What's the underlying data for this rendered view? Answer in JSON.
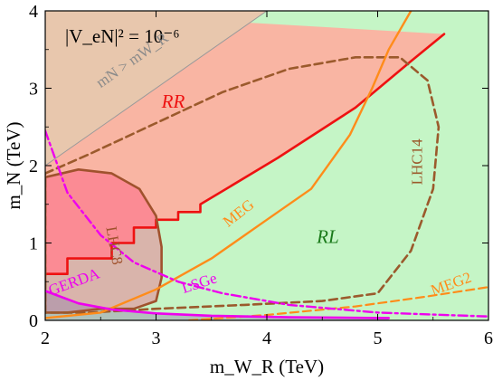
{
  "chart_data": {
    "type": "area",
    "title": "|V_eN|² = 10⁻⁶",
    "xlabel": "m_W_R (TeV)",
    "ylabel": "m_N (TeV)",
    "xlim": [
      2,
      6
    ],
    "ylim": [
      0,
      4
    ],
    "xticks": [
      "2",
      "3",
      "4",
      "5",
      "6"
    ],
    "yticks": [
      "0",
      "1",
      "2",
      "3",
      "4"
    ],
    "grid": false,
    "legend": "none",
    "colors": {
      "rl_region": "#c5f5c6",
      "rr_region": "#f9b5a3",
      "forbidden": "#e8c7ad",
      "rr_boundary": "#ee1111",
      "lhc8": "#a0522d",
      "lhc14": "#9b5a2c",
      "meg": "#ff8c1a",
      "meg2": "#ff8c1a",
      "lsge": "#ee00ee",
      "gerda": "#ee00ee",
      "forbidden_line": "#9a9a9a"
    },
    "regions": [
      {
        "label": "RR",
        "x": 3.05,
        "y": 2.75
      },
      {
        "label": "RL",
        "x": 4.45,
        "y": 1.0
      }
    ],
    "curve_labels": [
      {
        "label": "mN > mW_R",
        "at": [
          2.95,
          3.0
        ]
      },
      {
        "label": "LHC8",
        "at": [
          2.65,
          1.25
        ]
      },
      {
        "label": "LHC14",
        "at": [
          5.4,
          1.75
        ]
      },
      {
        "label": "MEG",
        "at": [
          3.9,
          1.2
        ]
      },
      {
        "label": "MEG2",
        "at": [
          5.75,
          0.32
        ]
      },
      {
        "label": "LSGe",
        "at": [
          3.6,
          0.35
        ]
      },
      {
        "label": "GERDA",
        "at": [
          2.5,
          0.32
        ]
      }
    ],
    "series": [
      {
        "name": "RR",
        "style": "solid",
        "x": [
          2.0,
          2.2,
          2.2,
          2.6,
          2.6,
          2.8,
          2.8,
          3.0,
          3.0,
          3.2,
          3.2,
          3.4,
          3.4,
          4.1,
          4.8,
          5.3,
          5.6
        ],
        "y": [
          0.6,
          0.6,
          0.8,
          0.8,
          1.0,
          1.0,
          1.2,
          1.2,
          1.3,
          1.3,
          1.4,
          1.4,
          1.5,
          2.1,
          2.75,
          3.35,
          3.7
        ]
      },
      {
        "name": "LHC8",
        "style": "solid",
        "x": [
          2.0,
          2.3,
          2.6,
          2.85,
          3.0,
          3.05,
          3.05,
          3.0,
          2.8,
          2.5,
          2.2,
          2.0
        ],
        "y": [
          1.85,
          1.95,
          1.9,
          1.7,
          1.35,
          0.95,
          0.55,
          0.25,
          0.15,
          0.15,
          0.1,
          0.1
        ]
      },
      {
        "name": "LHC14",
        "style": "dashed",
        "x": [
          2.0,
          2.4,
          3.0,
          3.6,
          4.2,
          4.8,
          5.2,
          5.45,
          5.55,
          5.5,
          5.3,
          5.0,
          4.5,
          3.8,
          3.0,
          2.4,
          2.0
        ],
        "y": [
          1.9,
          2.15,
          2.55,
          2.95,
          3.25,
          3.4,
          3.4,
          3.1,
          2.5,
          1.7,
          0.9,
          0.35,
          0.25,
          0.2,
          0.15,
          0.1,
          0.1
        ]
      },
      {
        "name": "MEG",
        "style": "solid",
        "x": [
          2.0,
          2.5,
          3.0,
          3.5,
          4.0,
          4.4,
          4.75,
          4.95,
          5.1,
          5.3
        ],
        "y": [
          0.03,
          0.1,
          0.4,
          0.8,
          1.3,
          1.7,
          2.4,
          3.0,
          3.5,
          4.0
        ]
      },
      {
        "name": "MEG2",
        "style": "dashed",
        "x": [
          3.3,
          4.0,
          4.8,
          5.4,
          6.0
        ],
        "y": [
          0.0,
          0.07,
          0.18,
          0.3,
          0.43
        ]
      },
      {
        "name": "LSGe",
        "style": "dashdot",
        "x": [
          2.0,
          2.2,
          2.5,
          2.8,
          3.2,
          3.6,
          4.2,
          5.0,
          6.0
        ],
        "y": [
          2.45,
          1.65,
          1.1,
          0.75,
          0.5,
          0.35,
          0.2,
          0.1,
          0.05
        ]
      },
      {
        "name": "GERDA",
        "style": "solid",
        "x": [
          2.0,
          2.3,
          2.6,
          3.0,
          3.5,
          4.2,
          5.0,
          5.1
        ],
        "y": [
          0.38,
          0.22,
          0.14,
          0.09,
          0.06,
          0.04,
          0.03,
          0.03
        ]
      },
      {
        "name": "mN > mW_R",
        "style": "solid",
        "x": [
          2.0,
          4.0
        ],
        "y": [
          2.0,
          4.0
        ]
      }
    ]
  }
}
